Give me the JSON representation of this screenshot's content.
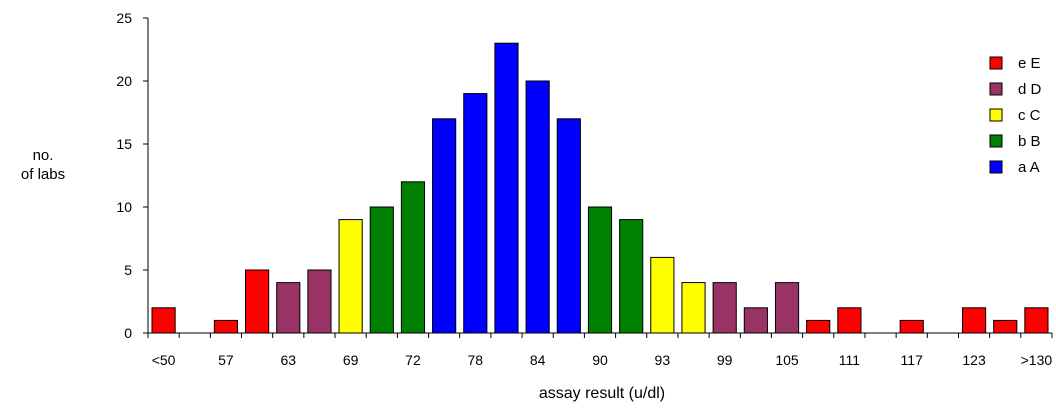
{
  "chart_data": {
    "type": "bar",
    "title": "",
    "xlabel": "assay result (u/dl)",
    "ylabel_lines": [
      "no.",
      "of labs"
    ],
    "ylim": [
      0,
      25
    ],
    "yticks": [
      0,
      5,
      10,
      15,
      20,
      25
    ],
    "tick_labels": [
      "<50",
      "57",
      "63",
      "69",
      "72",
      "78",
      "84",
      "90",
      "93",
      "99",
      "105",
      "111",
      "117",
      "123",
      ">130"
    ],
    "bars": [
      {
        "value": 2,
        "group": "e E"
      },
      {
        "value": 0,
        "group": ""
      },
      {
        "value": 1,
        "group": "e E"
      },
      {
        "value": 5,
        "group": "e E"
      },
      {
        "value": 4,
        "group": "d D"
      },
      {
        "value": 5,
        "group": "d D"
      },
      {
        "value": 9,
        "group": "c C"
      },
      {
        "value": 10,
        "group": "b B"
      },
      {
        "value": 12,
        "group": "b B"
      },
      {
        "value": 17,
        "group": "a A"
      },
      {
        "value": 19,
        "group": "a A"
      },
      {
        "value": 23,
        "group": "a A"
      },
      {
        "value": 20,
        "group": "a A"
      },
      {
        "value": 17,
        "group": "a A"
      },
      {
        "value": 10,
        "group": "b B"
      },
      {
        "value": 9,
        "group": "b B"
      },
      {
        "value": 6,
        "group": "c C"
      },
      {
        "value": 4,
        "group": "c C"
      },
      {
        "value": 4,
        "group": "d D"
      },
      {
        "value": 2,
        "group": "d D"
      },
      {
        "value": 4,
        "group": "d D"
      },
      {
        "value": 1,
        "group": "e E"
      },
      {
        "value": 2,
        "group": "e E"
      },
      {
        "value": 0,
        "group": ""
      },
      {
        "value": 1,
        "group": "e E"
      },
      {
        "value": 0,
        "group": ""
      },
      {
        "value": 2,
        "group": "e E"
      },
      {
        "value": 1,
        "group": "e E"
      },
      {
        "value": 2,
        "group": "e E"
      }
    ],
    "legend": [
      {
        "name": "e E",
        "color": "#ff0000"
      },
      {
        "name": "d D",
        "color": "#993366"
      },
      {
        "name": "c C",
        "color": "#ffff00"
      },
      {
        "name": "b B",
        "color": "#008000"
      },
      {
        "name": "a A",
        "color": "#0000ff"
      }
    ],
    "legend_position": "right",
    "grid": false
  }
}
